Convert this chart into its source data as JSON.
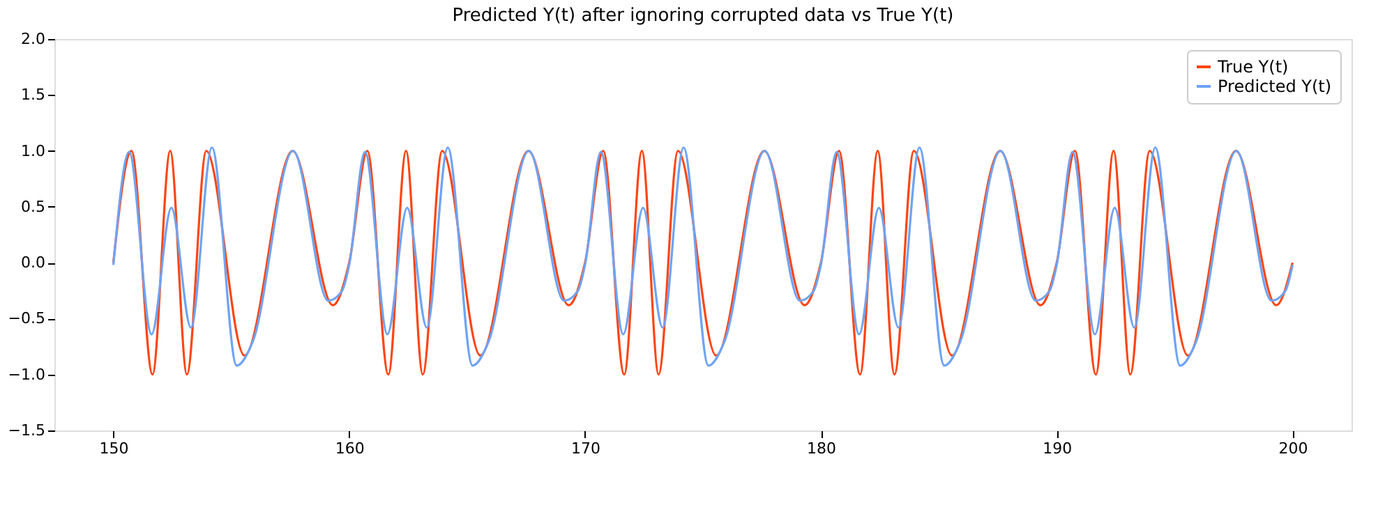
{
  "chart_data": {
    "type": "line",
    "title": "Predicted Y(t) after ignoring corrupted data vs True Y(t)",
    "xlim": [
      147.5,
      202.5
    ],
    "xticks": [
      150,
      160,
      170,
      180,
      190,
      200
    ],
    "ylim": [
      -1.5,
      2.0
    ],
    "yticks": [
      -1.5,
      {
        "value": -1,
        "label": "−1.0"
      },
      -0.5,
      {
        "value": 0,
        "label": "0.0"
      },
      0.5,
      {
        "value": 1,
        "label": "1.0"
      },
      1.5,
      {
        "value": 2,
        "label": "2.0"
      }
    ],
    "grid": false,
    "legend": "top right",
    "marker": "none",
    "line_style": "solid",
    "series": [
      {
        "name": "True Y(t)",
        "color": "#ff4512",
        "x": [
          150,
          150.77,
          151.66,
          152.41,
          153.12,
          153.94,
          155.56,
          157.6,
          159.31,
          160,
          160.77,
          161.66,
          162.41,
          163.12,
          163.94,
          165.56,
          167.6,
          169.31,
          170,
          170.77,
          171.66,
          172.41,
          173.12,
          173.94,
          175.56,
          177.6,
          179.31,
          180,
          180.77,
          181.66,
          182.41,
          183.12,
          183.94,
          185.56,
          187.6,
          189.31,
          190,
          190.77,
          191.66,
          192.41,
          193.12,
          193.94,
          195.56,
          197.6,
          199.31,
          200
        ],
        "values": [
          0,
          1.0,
          -1.0,
          1.0,
          -1.0,
          1.0,
          -0.83,
          1.0,
          -0.38,
          0,
          1.0,
          -1.0,
          1.0,
          -1.0,
          1.0,
          -0.83,
          1.0,
          -0.38,
          0,
          1.0,
          -1.0,
          1.0,
          -1.0,
          1.0,
          -0.83,
          1.0,
          -0.38,
          0,
          1.0,
          -1.0,
          1.0,
          -1.0,
          1.0,
          -0.83,
          1.0,
          -0.38,
          0,
          1.0,
          -1.0,
          1.0,
          -1.0,
          1.0,
          -0.83,
          1.0,
          -0.38,
          0
        ]
      },
      {
        "name": "Predicted Y(t)",
        "color": "#6fa3f5",
        "x": [
          150,
          150.67,
          151.62,
          152.46,
          153.29,
          154.18,
          155.23,
          155.92,
          157.62,
          159.11,
          159.7,
          160,
          160.67,
          161.62,
          162.46,
          163.29,
          164.18,
          165.23,
          165.92,
          167.62,
          169.11,
          169.7,
          170,
          170.67,
          171.62,
          172.46,
          173.29,
          174.18,
          175.23,
          175.92,
          177.62,
          179.11,
          179.7,
          180,
          180.67,
          181.62,
          182.46,
          183.29,
          184.18,
          185.23,
          185.92,
          187.62,
          189.11,
          189.7,
          190,
          190.67,
          191.62,
          192.46,
          193.29,
          194.18,
          195.23,
          195.92,
          197.62,
          199.11,
          199.7,
          200
        ],
        "values": [
          -0.02,
          0.99,
          -0.64,
          0.49,
          -0.58,
          1.03,
          -0.92,
          -0.7,
          1.0,
          -0.34,
          -0.25,
          -0.02,
          0.99,
          -0.64,
          0.49,
          -0.58,
          1.03,
          -0.92,
          -0.7,
          1.0,
          -0.34,
          -0.25,
          -0.02,
          0.99,
          -0.64,
          0.49,
          -0.58,
          1.03,
          -0.92,
          -0.7,
          1.0,
          -0.34,
          -0.25,
          -0.02,
          0.99,
          -0.64,
          0.49,
          -0.58,
          1.03,
          -0.92,
          -0.7,
          1.0,
          -0.34,
          -0.25,
          -0.02,
          0.99,
          -0.64,
          0.49,
          -0.58,
          1.03,
          -0.92,
          -0.7,
          1.0,
          -0.34,
          -0.25,
          -0.02
        ]
      }
    ]
  }
}
